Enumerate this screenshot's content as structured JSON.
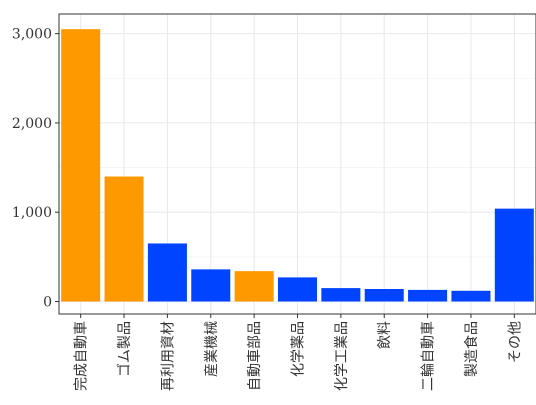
{
  "chart_data": {
    "type": "bar",
    "title": "",
    "xlabel": "",
    "ylabel": "",
    "categories": [
      "完成自動車",
      "ゴム製品",
      "再利用資材",
      "産業機械",
      "自動車部品",
      "化学薬品",
      "化学工業品",
      "飲料",
      "二輪自動車",
      "製造食品",
      "その他"
    ],
    "values": [
      3050,
      1400,
      650,
      360,
      340,
      270,
      150,
      140,
      130,
      120,
      1040
    ],
    "highlight": [
      true,
      true,
      false,
      false,
      true,
      false,
      false,
      false,
      false,
      false,
      false
    ],
    "colors": {
      "highlight": "#ff9900",
      "normal": "#0044ff"
    },
    "ylim": [
      -140,
      3220
    ],
    "yticks": [
      0,
      1000,
      2000,
      3000
    ],
    "ytick_labels": [
      "0",
      "1,000",
      "2,000",
      "3,000"
    ],
    "grid": true,
    "legend": "none"
  }
}
